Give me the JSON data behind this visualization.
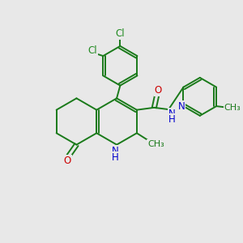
{
  "bg_color": "#e8e8e8",
  "atom_colors": {
    "C": "#1a7a1a",
    "N": "#0000cc",
    "O": "#cc0000",
    "Cl": "#228B22",
    "H": "#1a7a1a"
  },
  "bond_color": "#1a7a1a",
  "font_size": 8.5,
  "title": ""
}
